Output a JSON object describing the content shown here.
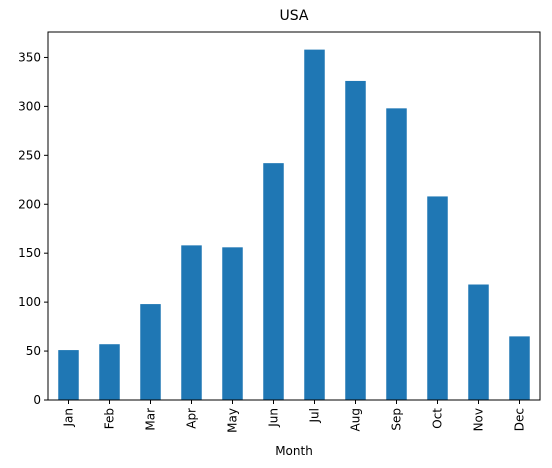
{
  "chart_data": {
    "type": "bar",
    "title": "USA",
    "xlabel": "Month",
    "ylabel": "",
    "categories": [
      "Jan",
      "Feb",
      "Mar",
      "Apr",
      "May",
      "Jun",
      "Jul",
      "Aug",
      "Sep",
      "Oct",
      "Nov",
      "Dec"
    ],
    "values": [
      51,
      57,
      98,
      158,
      156,
      242,
      358,
      326,
      298,
      208,
      118,
      65
    ],
    "ylim": [
      0,
      376
    ],
    "yticks": [
      0,
      50,
      100,
      150,
      200,
      250,
      300,
      350
    ],
    "grid": false,
    "legend": "none",
    "bar_color": "#1f77b4"
  }
}
